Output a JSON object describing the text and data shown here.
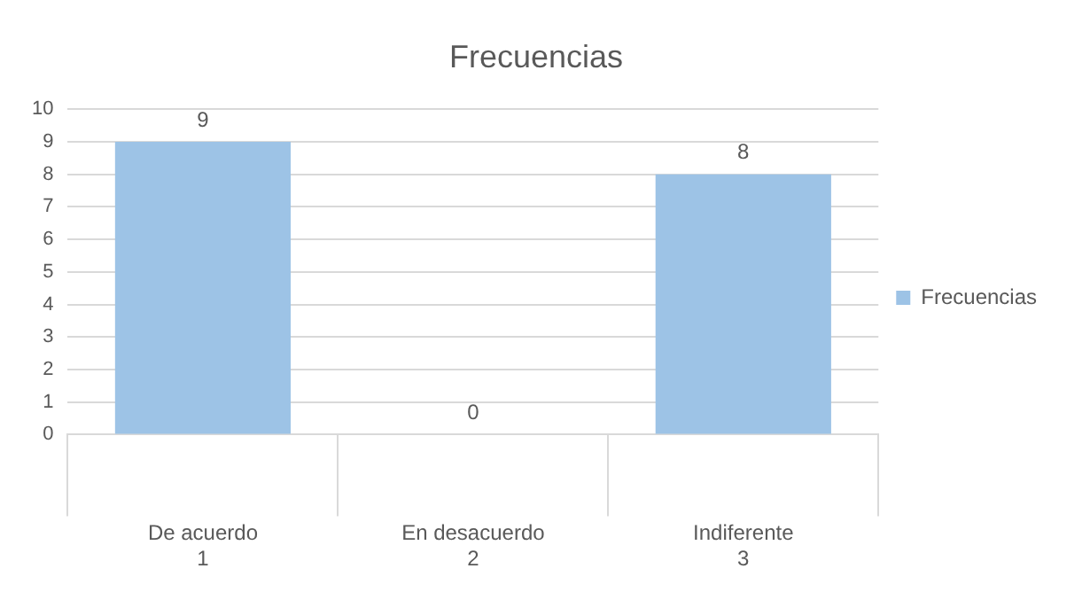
{
  "chart_data": {
    "type": "bar",
    "title": "Frecuencias",
    "categories": [
      "De acuerdo\n1",
      "En desacuerdo\n2",
      "Indiferente\n3"
    ],
    "series": [
      {
        "name": "Frecuencias",
        "color": "#9dc3e6",
        "values": [
          9,
          0,
          8
        ]
      }
    ],
    "ylim": [
      0,
      10
    ],
    "yticks": [
      0,
      1,
      2,
      3,
      4,
      5,
      6,
      7,
      8,
      9,
      10
    ],
    "grid": "y",
    "legend": "right",
    "data_labels": true
  }
}
